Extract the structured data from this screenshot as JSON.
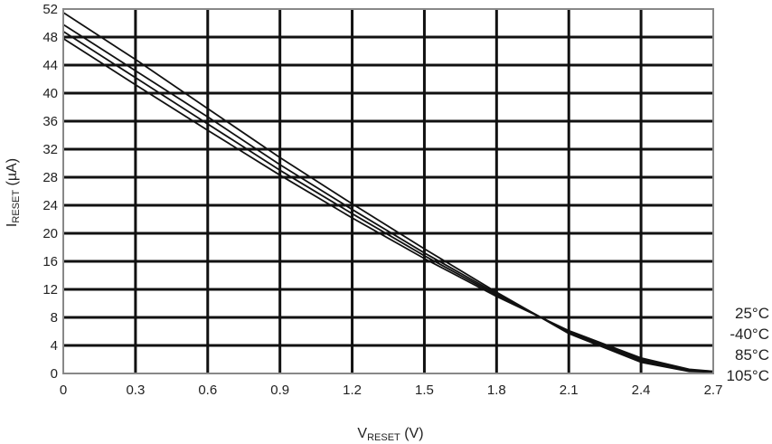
{
  "chart_data": {
    "type": "line",
    "title": "",
    "xlabel": {
      "main": "V",
      "sub": "RESET",
      "unit": " (V)"
    },
    "ylabel": {
      "main": "I",
      "sub": "RESET",
      "unit": " (µA)"
    },
    "xlim": [
      0,
      2.7
    ],
    "ylim": [
      0,
      52
    ],
    "grid": true,
    "x_ticks": [
      "0",
      "0.3",
      "0.6",
      "0.9",
      "1.2",
      "1.5",
      "1.8",
      "2.1",
      "2.4",
      "2.7"
    ],
    "y_ticks": [
      "0",
      "4",
      "8",
      "12",
      "16",
      "20",
      "24",
      "28",
      "32",
      "36",
      "40",
      "44",
      "48",
      "52"
    ],
    "series": [
      {
        "name": "25°C",
        "x": [
          0,
          0.3,
          0.6,
          0.9,
          1.2,
          1.5,
          1.8,
          2.1,
          2.4,
          2.6,
          2.7
        ],
        "y": [
          51.5,
          44.8,
          37.8,
          30.8,
          24.2,
          17.8,
          11.6,
          5.7,
          1.6,
          0.3,
          0.2
        ]
      },
      {
        "name": "-40°C",
        "x": [
          0,
          0.3,
          0.6,
          0.9,
          1.2,
          1.5,
          1.8,
          2.1,
          2.4,
          2.6,
          2.7
        ],
        "y": [
          49.8,
          43.2,
          36.6,
          29.8,
          23.4,
          17.2,
          11.4,
          5.9,
          1.8,
          0.4,
          0.2
        ]
      },
      {
        "name": "85°C",
        "x": [
          0,
          0.3,
          0.6,
          0.9,
          1.2,
          1.5,
          1.8,
          2.1,
          2.4,
          2.6,
          2.7
        ],
        "y": [
          48.8,
          42.2,
          35.6,
          29.0,
          22.8,
          16.8,
          11.2,
          6.0,
          2.0,
          0.5,
          0.3
        ]
      },
      {
        "name": "105°C",
        "x": [
          0,
          0.3,
          0.6,
          0.9,
          1.2,
          1.5,
          1.8,
          2.1,
          2.4,
          2.6,
          2.7
        ],
        "y": [
          47.8,
          41.2,
          34.7,
          28.3,
          22.2,
          16.4,
          11.0,
          6.1,
          2.2,
          0.6,
          0.3
        ]
      }
    ],
    "series_label_order": [
      "25°C",
      "-40°C",
      "85°C",
      "105°C"
    ]
  }
}
